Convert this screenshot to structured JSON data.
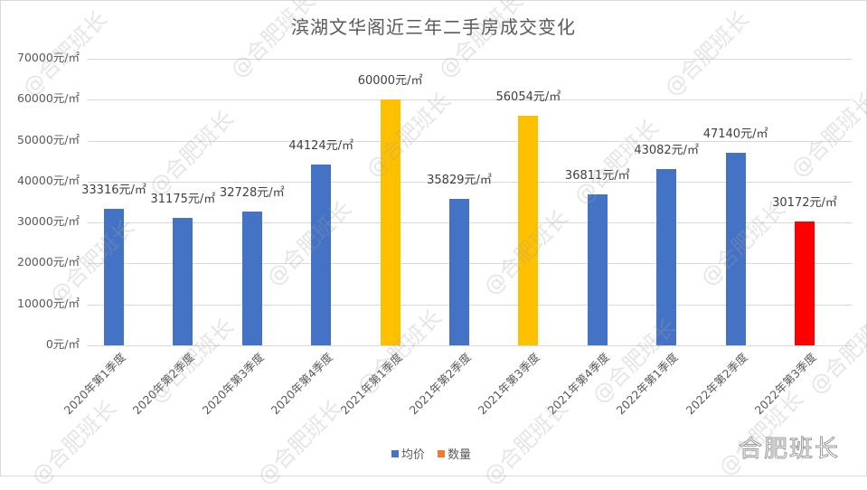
{
  "chart_data": {
    "type": "bar",
    "title": "滨湖文华阁近三年二手房成交变化",
    "xlabel": "",
    "ylabel": "",
    "ylim": [
      0,
      70000
    ],
    "grid": true,
    "legend_position": "bottom",
    "y_ticks": [
      "0元/㎡",
      "10000元/㎡",
      "20000元/㎡",
      "30000元/㎡",
      "40000元/㎡",
      "50000元/㎡",
      "60000元/㎡",
      "70000元/㎡"
    ],
    "categories": [
      "2020年第1季度",
      "2020年第2季度",
      "2020年第3季度",
      "2020年第4季度",
      "2021年第1季度",
      "2021年第2季度",
      "2021年第3季度",
      "2021年第4季度",
      "2022年第1季度",
      "2022年第2季度",
      "2022年第3季度"
    ],
    "series": [
      {
        "name": "均价",
        "color": "#4472C4",
        "values": [
          33316,
          31175,
          32728,
          44124,
          60000,
          35829,
          56054,
          36811,
          43082,
          47140,
          30172
        ]
      },
      {
        "name": "数量",
        "color": "#ED7D31",
        "values": []
      }
    ],
    "data_labels": [
      "33316元/㎡",
      "31175元/㎡",
      "32728元/㎡",
      "44124元/㎡",
      "60000元/㎡",
      "35829元/㎡",
      "56054元/㎡",
      "36811元/㎡",
      "43082元/㎡",
      "47140元/㎡",
      "30172元/㎡"
    ],
    "bar_colors": [
      "#4472C4",
      "#4472C4",
      "#4472C4",
      "#4472C4",
      "#FFC000",
      "#4472C4",
      "#FFC000",
      "#4472C4",
      "#4472C4",
      "#4472C4",
      "#FF0000"
    ]
  },
  "legend": [
    {
      "label": "均价",
      "color": "#4472C4"
    },
    {
      "label": "数量",
      "color": "#ED7D31"
    }
  ],
  "watermark": {
    "text": "@合肥班长",
    "brand": "合肥班长"
  }
}
